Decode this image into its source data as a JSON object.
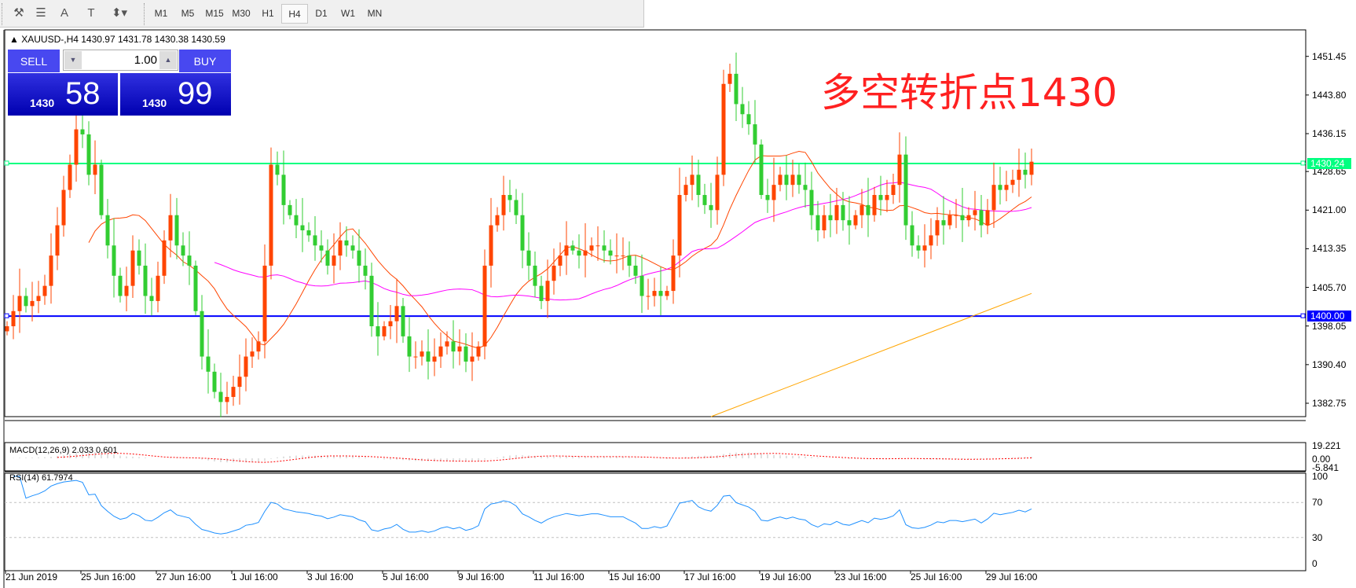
{
  "toolbar": {
    "icons": [
      {
        "name": "indicators-icon",
        "glyph": "⚒"
      },
      {
        "name": "fibo-lines-icon",
        "glyph": "☰"
      },
      {
        "name": "text-icon",
        "glyph": "A"
      },
      {
        "name": "text-label-icon",
        "glyph": "T"
      },
      {
        "name": "arrows-icon",
        "glyph": "⬍▾"
      }
    ],
    "timeframes": [
      "M1",
      "M5",
      "M15",
      "M30",
      "H1",
      "H4",
      "D1",
      "W1",
      "MN"
    ],
    "active_timeframe": "H4"
  },
  "chart": {
    "title_arrow": "▲",
    "title": "XAUUSD-,H4  1430.97 1431.78 1430.38 1430.59",
    "one_click": {
      "sell_label": "SELL",
      "buy_label": "BUY",
      "lot": "1.00",
      "sell_prefix": "1430",
      "sell_big": "58",
      "buy_prefix": "1430",
      "buy_big": "99"
    },
    "annotation": "多空转折点1430",
    "price_ticks": [
      "1451.45",
      "1443.80",
      "1436.15",
      "1428.65",
      "1421.00",
      "1413.35",
      "1405.70",
      "1398.05",
      "1390.40",
      "1382.75"
    ],
    "hlines": [
      {
        "price": 1430.24,
        "label": "1430.24",
        "color": "#00ff80"
      },
      {
        "price": 1400.0,
        "label": "1400.00",
        "color": "#0000ff"
      }
    ],
    "macd": {
      "label": "MACD(12,26,9) 2.033 0.601",
      "ticks": [
        "19.221",
        "0.00",
        "-5.841"
      ]
    },
    "rsi": {
      "label": "RSI(14) 61.7974",
      "ticks": [
        "100",
        "70",
        "30",
        "0"
      ]
    },
    "dates": [
      "21 Jun 2019",
      "25 Jun 16:00",
      "27 Jun 16:00",
      "1 Jul 16:00",
      "3 Jul 16:00",
      "5 Jul 16:00",
      "9 Jul 16:00",
      "11 Jul 16:00",
      "15 Jul 16:00",
      "17 Jul 16:00",
      "19 Jul 16:00",
      "23 Jul 16:00",
      "25 Jul 16:00",
      "29 Jul 16:00"
    ]
  },
  "chart_data": {
    "type": "candlestick",
    "symbol": "XAUUSD-",
    "timeframe": "H4",
    "ylim": [
      1380.1,
      1456.7
    ],
    "up_color": "#ff4500",
    "down_color": "#32cd32",
    "close": [
      1398,
      1401,
      1404,
      1402,
      1403,
      1404,
      1406,
      1412,
      1418,
      1425,
      1430,
      1437,
      1436,
      1428,
      1430,
      1420,
      1414,
      1408,
      1404,
      1406,
      1413,
      1410,
      1404,
      1403,
      1408,
      1415,
      1420,
      1414,
      1412,
      1410,
      1401,
      1392,
      1389,
      1385,
      1383,
      1384,
      1386,
      1388,
      1392,
      1393,
      1395,
      1410,
      1430,
      1428,
      1422,
      1420,
      1418,
      1417,
      1416,
      1414,
      1413,
      1410,
      1412,
      1415,
      1414,
      1413,
      1410,
      1408,
      1398,
      1396,
      1398,
      1399,
      1402,
      1396,
      1392,
      1392,
      1393,
      1391,
      1392,
      1394,
      1395,
      1393,
      1394,
      1391,
      1392,
      1394,
      1410,
      1418,
      1420,
      1424,
      1423,
      1420,
      1413,
      1410,
      1406,
      1403,
      1407,
      1410,
      1412,
      1414,
      1413,
      1412,
      1413,
      1414,
      1414,
      1413,
      1412,
      1412,
      1412,
      1410,
      1408,
      1404,
      1404,
      1405,
      1404,
      1405,
      1412,
      1424,
      1426,
      1428,
      1424,
      1422,
      1421,
      1428,
      1446,
      1448,
      1442,
      1440,
      1438,
      1434,
      1424,
      1423,
      1426,
      1428,
      1426,
      1428,
      1426,
      1425,
      1420,
      1417,
      1420,
      1419,
      1422,
      1419,
      1418,
      1420,
      1422,
      1420,
      1424,
      1423,
      1424,
      1426,
      1432,
      1418,
      1414,
      1413,
      1414,
      1416,
      1419,
      1418,
      1420,
      1420,
      1419,
      1420,
      1421,
      1418,
      1421,
      1426,
      1425,
      1426,
      1427,
      1429,
      1428,
      1430.59
    ],
    "ma_fast_color": "#ff4500",
    "ma_slow_color": "#ff00ff",
    "ma_long": {
      "color": "#ffa500",
      "from": [
        112,
        1380.1
      ],
      "to": [
        163,
        1404.5
      ]
    },
    "macd_color": "#c0c0c0",
    "signal_color": "#ff0000",
    "rsi_color": "#1e90ff",
    "rsi_levels": [
      70,
      30
    ]
  }
}
